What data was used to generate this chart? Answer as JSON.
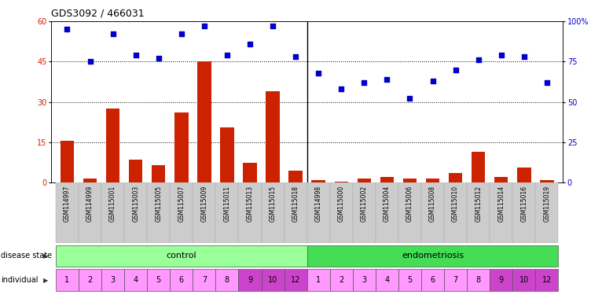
{
  "title": "GDS3092 / 466031",
  "samples": [
    "GSM114997",
    "GSM114999",
    "GSM115001",
    "GSM115003",
    "GSM115005",
    "GSM115007",
    "GSM115009",
    "GSM115011",
    "GSM115013",
    "GSM115015",
    "GSM115018",
    "GSM114998",
    "GSM115000",
    "GSM115002",
    "GSM115004",
    "GSM115006",
    "GSM115008",
    "GSM115010",
    "GSM115012",
    "GSM115014",
    "GSM115016",
    "GSM115019"
  ],
  "transformed_count": [
    15.5,
    1.5,
    27.5,
    8.5,
    6.5,
    26.0,
    45.0,
    20.5,
    7.5,
    34.0,
    4.5,
    1.0,
    0.5,
    1.5,
    2.0,
    1.5,
    1.5,
    3.5,
    11.5,
    2.0,
    5.5,
    1.0
  ],
  "percentile_rank": [
    95,
    75,
    92,
    79,
    77,
    92,
    97,
    79,
    86,
    97,
    78,
    68,
    58,
    62,
    64,
    52,
    63,
    70,
    76,
    79,
    78,
    62
  ],
  "individual": [
    "1",
    "2",
    "3",
    "4",
    "5",
    "6",
    "7",
    "8",
    "9",
    "10",
    "12",
    "1",
    "2",
    "3",
    "4",
    "5",
    "6",
    "7",
    "8",
    "9",
    "10",
    "12"
  ],
  "n_control": 11,
  "n_endo": 11,
  "ylim_left": [
    0,
    60
  ],
  "ylim_right": [
    0,
    100
  ],
  "yticks_left": [
    0,
    15,
    30,
    45,
    60
  ],
  "ytick_labels_left": [
    "0",
    "15",
    "30",
    "45",
    "60"
  ],
  "yticks_right": [
    0,
    25,
    50,
    75,
    100
  ],
  "ytick_labels_right": [
    "0",
    "25",
    "50",
    "75",
    "100%"
  ],
  "hlines": [
    15,
    30,
    45
  ],
  "bar_color": "#cc2200",
  "dot_color": "#0000cc",
  "control_color": "#99ff99",
  "endo_color": "#44dd55",
  "ind_color_light": "#ff99ff",
  "ind_color_dark": "#cc44cc",
  "axis_bg": "#cccccc",
  "fig_width": 7.66,
  "fig_height": 3.84
}
